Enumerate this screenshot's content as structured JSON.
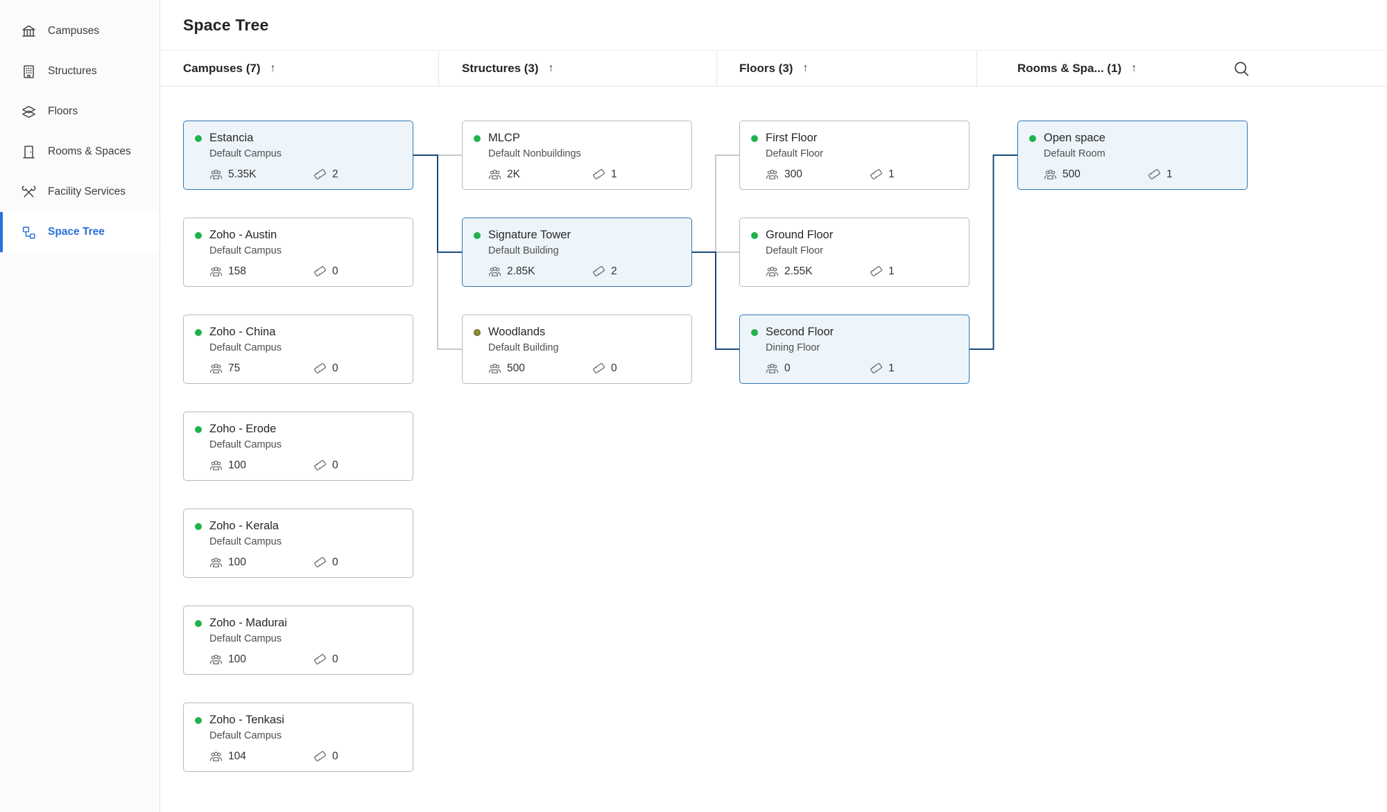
{
  "page_title": "Space Tree",
  "sidebar": {
    "items": [
      {
        "label": "Campuses",
        "icon": "campuses-icon",
        "active": false
      },
      {
        "label": "Structures",
        "icon": "structures-icon",
        "active": false
      },
      {
        "label": "Floors",
        "icon": "floors-icon",
        "active": false
      },
      {
        "label": "Rooms & Spaces",
        "icon": "rooms-spaces-icon",
        "active": false
      },
      {
        "label": "Facility Services",
        "icon": "facility-services-icon",
        "active": false
      },
      {
        "label": "Space Tree",
        "icon": "space-tree-icon",
        "active": true
      }
    ]
  },
  "toolbar": {
    "search_icon": "search-icon"
  },
  "stat_icons": {
    "occupancy": "people-icon",
    "assets": "ticket-icon"
  },
  "columns": [
    {
      "label": "Campuses (7)",
      "sort_icon": "sort-asc-icon",
      "cards": [
        {
          "name": "Estancia",
          "subtitle": "Default Campus",
          "occupancy": "5.35K",
          "assets": "2",
          "status": "green",
          "selected": true
        },
        {
          "name": "Zoho - Austin",
          "subtitle": "Default Campus",
          "occupancy": "158",
          "assets": "0",
          "status": "green",
          "selected": false
        },
        {
          "name": "Zoho - China",
          "subtitle": "Default Campus",
          "occupancy": "75",
          "assets": "0",
          "status": "green",
          "selected": false
        },
        {
          "name": "Zoho - Erode",
          "subtitle": "Default Campus",
          "occupancy": "100",
          "assets": "0",
          "status": "green",
          "selected": false
        },
        {
          "name": "Zoho - Kerala",
          "subtitle": "Default Campus",
          "occupancy": "100",
          "assets": "0",
          "status": "green",
          "selected": false
        },
        {
          "name": "Zoho - Madurai",
          "subtitle": "Default Campus",
          "occupancy": "100",
          "assets": "0",
          "status": "green",
          "selected": false
        },
        {
          "name": "Zoho - Tenkasi",
          "subtitle": "Default Campus",
          "occupancy": "104",
          "assets": "0",
          "status": "green",
          "selected": false
        }
      ]
    },
    {
      "label": "Structures (3)",
      "sort_icon": "sort-asc-icon",
      "cards": [
        {
          "name": "MLCP",
          "subtitle": "Default Nonbuildings",
          "occupancy": "2K",
          "assets": "1",
          "status": "green",
          "selected": false
        },
        {
          "name": "Signature Tower",
          "subtitle": "Default Building",
          "occupancy": "2.85K",
          "assets": "2",
          "status": "green",
          "selected": true
        },
        {
          "name": "Woodlands",
          "subtitle": "Default Building",
          "occupancy": "500",
          "assets": "0",
          "status": "olive",
          "selected": false
        }
      ]
    },
    {
      "label": "Floors (3)",
      "sort_icon": "sort-asc-icon",
      "cards": [
        {
          "name": "First Floor",
          "subtitle": "Default Floor",
          "occupancy": "300",
          "assets": "1",
          "status": "green",
          "selected": false
        },
        {
          "name": "Ground Floor",
          "subtitle": "Default Floor",
          "occupancy": "2.55K",
          "assets": "1",
          "status": "green",
          "selected": false
        },
        {
          "name": "Second Floor",
          "subtitle": "Dining Floor",
          "occupancy": "0",
          "assets": "1",
          "status": "green",
          "selected": true
        }
      ]
    },
    {
      "label": "Rooms & Spa... (1)",
      "sort_icon": "sort-asc-icon",
      "cards": [
        {
          "name": "Open space",
          "subtitle": "Default Room",
          "occupancy": "500",
          "assets": "1",
          "status": "green",
          "selected": true
        }
      ]
    }
  ],
  "links": [
    {
      "from": [
        0,
        0
      ],
      "to": [
        1,
        0
      ],
      "highlight": false
    },
    {
      "from": [
        0,
        0
      ],
      "to": [
        1,
        2
      ],
      "highlight": false
    },
    {
      "from": [
        0,
        0
      ],
      "to": [
        1,
        1
      ],
      "highlight": true
    },
    {
      "from": [
        1,
        1
      ],
      "to": [
        2,
        0
      ],
      "highlight": false
    },
    {
      "from": [
        1,
        1
      ],
      "to": [
        2,
        1
      ],
      "highlight": false
    },
    {
      "from": [
        1,
        1
      ],
      "to": [
        2,
        2
      ],
      "highlight": true
    },
    {
      "from": [
        2,
        2
      ],
      "to": [
        3,
        0
      ],
      "highlight": true
    }
  ],
  "colors": {
    "accent_blue": "#2a6fdb",
    "selected_border": "#2e74b5",
    "selected_bg": "#edf5fb",
    "link_highlight": "#17497b",
    "link_gray": "#b5b5b5",
    "status_green": "#22b24c",
    "status_olive": "#8a8b33",
    "card_border": "#b9b9b9"
  }
}
